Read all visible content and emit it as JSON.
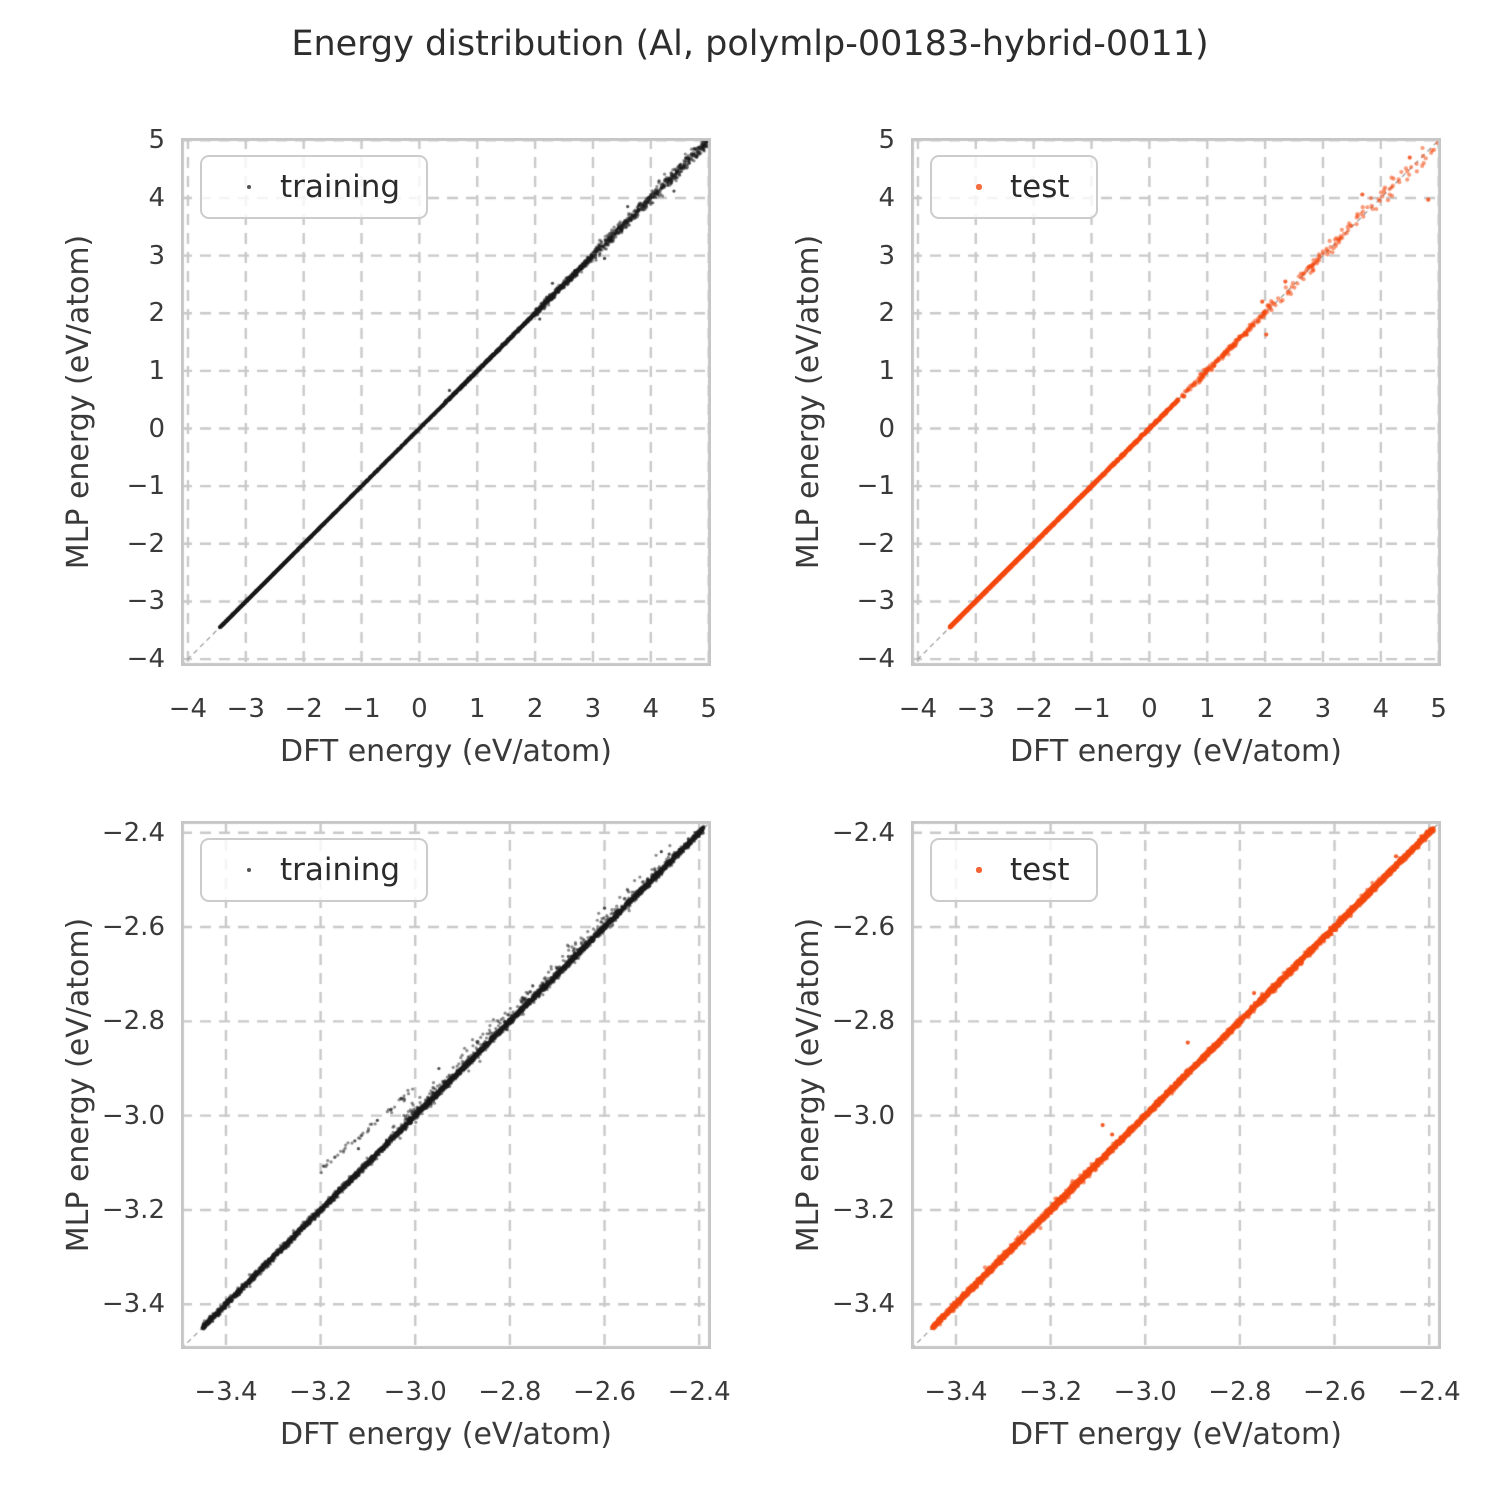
{
  "title": "Energy distribution (Al, polymlp-00183-hybrid-0011)",
  "colors": {
    "background": "#ffffff",
    "grid": "#c9c9c9",
    "spine": "#c6c6c6",
    "identity_line": "#909090",
    "tick_text": "#3a3a3a",
    "title_text": "#2d2d2d",
    "training": "#1a1a1a",
    "test": "#f4490f"
  },
  "chart_data": [
    {
      "position": "top-left",
      "type": "scatter",
      "xlabel": "DFT energy (eV/atom)",
      "ylabel": "MLP energy (eV/atom)",
      "xlim": [
        -4.12,
        5.04
      ],
      "ylim": [
        -4.12,
        5.04
      ],
      "xticks": {
        "values": [
          -4,
          -3,
          -2,
          -1,
          0,
          1,
          2,
          3,
          4,
          5
        ],
        "labels": [
          "−4",
          "−3",
          "−2",
          "−1",
          "0",
          "1",
          "2",
          "3",
          "4",
          "5"
        ]
      },
      "yticks": {
        "values": [
          5,
          4,
          3,
          2,
          1,
          0,
          -1,
          -2,
          -3,
          -4
        ],
        "labels": [
          "5",
          "4",
          "3",
          "2",
          "1",
          "0",
          "−1",
          "−2",
          "−3",
          "−4"
        ]
      },
      "grid": true,
      "identity_line": true,
      "legend": {
        "label": "training",
        "location": "upper left"
      },
      "series": [
        {
          "name": "training",
          "color_key": "training",
          "alpha": 0.5,
          "marker_radius": 1.6,
          "relation": "y = x parity line, MLP vs DFT energy",
          "seed": 11,
          "segments": [
            {
              "x0": -3.45,
              "x1": -2.2,
              "count": 2600,
              "sigma": 0.005
            },
            {
              "x0": -2.2,
              "x1": 0.4,
              "count": 2200,
              "sigma": 0.007
            },
            {
              "x0": 0.4,
              "x1": 2.0,
              "count": 1400,
              "sigma": 0.012
            },
            {
              "x0": 2.0,
              "x1": 3.0,
              "count": 550,
              "sigma": 0.03
            },
            {
              "x0": 3.0,
              "x1": 4.0,
              "count": 320,
              "sigma": 0.05
            },
            {
              "x0": 4.0,
              "x1": 5.0,
              "count": 280,
              "sigma": 0.055
            }
          ],
          "outliers": [
            [
              0.52,
              0.66
            ],
            [
              2.08,
              1.9
            ],
            [
              2.3,
              2.52
            ],
            [
              3.2,
              2.95
            ],
            [
              4.4,
              4.12
            ],
            [
              3.6,
              3.85
            ]
          ]
        }
      ]
    },
    {
      "position": "top-right",
      "type": "scatter",
      "xlabel": "DFT energy (eV/atom)",
      "ylabel": "MLP energy (eV/atom)",
      "xlim": [
        -4.12,
        5.04
      ],
      "ylim": [
        -4.12,
        5.04
      ],
      "xticks": {
        "values": [
          -4,
          -3,
          -2,
          -1,
          0,
          1,
          2,
          3,
          4,
          5
        ],
        "labels": [
          "−4",
          "−3",
          "−2",
          "−1",
          "0",
          "1",
          "2",
          "3",
          "4",
          "5"
        ]
      },
      "yticks": {
        "values": [
          5,
          4,
          3,
          2,
          1,
          0,
          -1,
          -2,
          -3,
          -4
        ],
        "labels": [
          "5",
          "4",
          "3",
          "2",
          "1",
          "0",
          "−1",
          "−2",
          "−3",
          "−4"
        ]
      },
      "grid": true,
      "identity_line": true,
      "legend": {
        "label": "test",
        "location": "upper left"
      },
      "series": [
        {
          "name": "test",
          "color_key": "test",
          "alpha": 0.55,
          "marker_radius": 2.1,
          "relation": "y = x parity line, MLP vs DFT energy",
          "seed": 22,
          "segments": [
            {
              "x0": -3.45,
              "x1": -2.0,
              "count": 1900,
              "sigma": 0.004
            },
            {
              "x0": -2.0,
              "x1": -0.8,
              "count": 950,
              "sigma": 0.006
            },
            {
              "x0": -0.8,
              "x1": 0.5,
              "count": 480,
              "sigma": 0.01
            },
            {
              "x0": 0.5,
              "x1": 2.0,
              "count": 190,
              "sigma": 0.028
            },
            {
              "x0": 2.0,
              "x1": 3.5,
              "count": 85,
              "sigma": 0.06
            },
            {
              "x0": 3.5,
              "x1": 5.0,
              "count": 48,
              "sigma": 0.1
            }
          ],
          "outliers": [
            [
              2.02,
              1.63
            ],
            [
              3.68,
              4.06
            ],
            [
              4.82,
              3.97
            ],
            [
              2.35,
              2.55
            ],
            [
              1.95,
              2.2
            ],
            [
              4.5,
              4.7
            ]
          ]
        }
      ]
    },
    {
      "position": "bottom-left",
      "type": "scatter",
      "xlabel": "DFT energy (eV/atom)",
      "ylabel": "MLP energy (eV/atom)",
      "xlim": [
        -3.495,
        -2.375
      ],
      "ylim": [
        -3.495,
        -2.375
      ],
      "xticks": {
        "values": [
          -3.4,
          -3.2,
          -3.0,
          -2.8,
          -2.6,
          -2.4
        ],
        "labels": [
          "−3.4",
          "−3.2",
          "−3.0",
          "−2.8",
          "−2.6",
          "−2.4"
        ]
      },
      "yticks": {
        "values": [
          -2.4,
          -2.6,
          -2.8,
          -3.0,
          -3.2,
          -3.4
        ],
        "labels": [
          "−2.4",
          "−2.6",
          "−2.8",
          "−3.0",
          "−3.2",
          "−3.4"
        ]
      },
      "grid": true,
      "identity_line": true,
      "legend": {
        "label": "training",
        "location": "upper left"
      },
      "series": [
        {
          "name": "training",
          "color_key": "training",
          "alpha": 0.5,
          "marker_radius": 1.6,
          "relation": "y = x parity line, MLP vs DFT energy (zoomed)",
          "seed": 33,
          "segments": [
            {
              "x0": -3.45,
              "x1": -2.39,
              "count": 5200,
              "sigma": 0.0035
            },
            {
              "x0": -3.05,
              "x1": -2.45,
              "count": 320,
              "sigma": 0.012,
              "bias": 0.008
            },
            {
              "x0": -3.2,
              "x1": -3.0,
              "count": 48,
              "sigma": 0.004,
              "bias": [
                0.085,
                0.06
              ]
            },
            {
              "x0": -2.9,
              "x1": -2.55,
              "count": 35,
              "sigma": 0.006,
              "bias": 0.02
            }
          ],
          "outliers": [
            [
              -3.08,
              -3.01
            ],
            [
              -2.95,
              -2.9
            ],
            [
              -2.6,
              -2.56
            ],
            [
              -3.12,
              -3.07
            ],
            [
              -2.48,
              -2.44
            ]
          ]
        }
      ]
    },
    {
      "position": "bottom-right",
      "type": "scatter",
      "xlabel": "DFT energy (eV/atom)",
      "ylabel": "MLP energy (eV/atom)",
      "xlim": [
        -3.495,
        -2.375
      ],
      "ylim": [
        -3.495,
        -2.375
      ],
      "xticks": {
        "values": [
          -3.4,
          -3.2,
          -3.0,
          -2.8,
          -2.6,
          -2.4
        ],
        "labels": [
          "−3.4",
          "−3.2",
          "−3.0",
          "−2.8",
          "−2.6",
          "−2.4"
        ]
      },
      "yticks": {
        "values": [
          -2.4,
          -2.6,
          -2.8,
          -3.0,
          -3.2,
          -3.4
        ],
        "labels": [
          "−2.4",
          "−2.6",
          "−2.8",
          "−3.0",
          "−3.2",
          "−3.4"
        ]
      },
      "grid": true,
      "identity_line": true,
      "legend": {
        "label": "test",
        "location": "upper left"
      },
      "series": [
        {
          "name": "test",
          "color_key": "test",
          "alpha": 0.6,
          "marker_radius": 2.1,
          "relation": "y = x parity line, MLP vs DFT energy (zoomed)",
          "seed": 44,
          "segments": [
            {
              "x0": -3.45,
              "x1": -2.39,
              "count": 4800,
              "sigma": 0.003
            },
            {
              "x0": -3.35,
              "x1": -3.1,
              "count": 90,
              "sigma": 0.007
            },
            {
              "x0": -2.8,
              "x1": -2.5,
              "count": 60,
              "sigma": 0.005
            }
          ],
          "outliers": [
            [
              -3.09,
              -3.02
            ],
            [
              -2.91,
              -2.845
            ],
            [
              -3.07,
              -3.04
            ],
            [
              -2.77,
              -2.74
            ],
            [
              -2.47,
              -2.45
            ]
          ]
        }
      ]
    }
  ]
}
